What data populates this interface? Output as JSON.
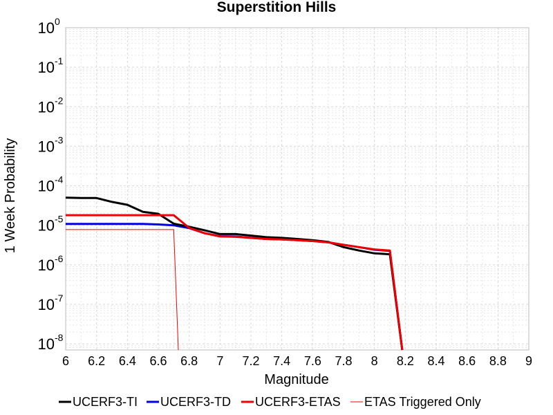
{
  "chart_data": {
    "type": "line",
    "title": "Superstition Hills",
    "xlabel": "Magnitude",
    "ylabel": "1 Week Probability",
    "xlim": [
      6,
      9
    ],
    "ylim": [
      7e-09,
      1
    ],
    "yscale": "log",
    "grid": true,
    "legend_position": "bottom",
    "x_ticks": [
      "6",
      "6.2",
      "6.4",
      "6.6",
      "6.8",
      "7",
      "7.2",
      "7.4",
      "7.6",
      "7.8",
      "8",
      "8.2",
      "8.4",
      "8.6",
      "8.8",
      "9"
    ],
    "y_ticks": [
      {
        "base": "10",
        "exp": "0",
        "value": 1
      },
      {
        "base": "10",
        "exp": "-1",
        "value": 0.1
      },
      {
        "base": "10",
        "exp": "-2",
        "value": 0.01
      },
      {
        "base": "10",
        "exp": "-3",
        "value": 0.001
      },
      {
        "base": "10",
        "exp": "-4",
        "value": 0.0001
      },
      {
        "base": "10",
        "exp": "-5",
        "value": 1e-05
      },
      {
        "base": "10",
        "exp": "-6",
        "value": 1e-06
      },
      {
        "base": "10",
        "exp": "-7",
        "value": 1e-07
      },
      {
        "base": "10",
        "exp": "-8",
        "value": 1e-08
      }
    ],
    "series": [
      {
        "name": "UCERF3-TI",
        "color": "#000000",
        "width": 3,
        "x": [
          6.0,
          6.1,
          6.2,
          6.3,
          6.4,
          6.5,
          6.6,
          6.7,
          6.8,
          6.9,
          7.0,
          7.1,
          7.2,
          7.3,
          7.4,
          7.5,
          7.6,
          7.7,
          7.8,
          7.9,
          8.0,
          8.1,
          8.18
        ],
        "y": [
          5e-05,
          4.9e-05,
          4.9e-05,
          3.9e-05,
          3.3e-05,
          2.2e-05,
          1.95e-05,
          1.1e-05,
          9.2e-06,
          7.5e-06,
          6e-06,
          6e-06,
          5.5e-06,
          5e-06,
          4.8e-06,
          4.5e-06,
          4.2e-06,
          3.8e-06,
          2.8e-06,
          2.3e-06,
          1.95e-06,
          1.85e-06,
          7e-09
        ]
      },
      {
        "name": "UCERF3-TD",
        "color": "#0000dd",
        "width": 3,
        "x": [
          6.0,
          6.5,
          6.6,
          6.7,
          6.8,
          6.9,
          7.0,
          7.1,
          7.2,
          7.3,
          7.4,
          7.5,
          7.6,
          7.7,
          7.8,
          7.9,
          8.0,
          8.1,
          8.18
        ],
        "y": [
          1.08e-05,
          1.08e-05,
          1.05e-05,
          1e-05,
          8.5e-06,
          6.3e-06,
          5.3e-06,
          5.2e-06,
          4.8e-06,
          4.5e-06,
          4.4e-06,
          4.2e-06,
          4e-06,
          3.7e-06,
          3.2e-06,
          2.8e-06,
          2.4e-06,
          2.25e-06,
          7e-09
        ]
      },
      {
        "name": "UCERF3-ETAS",
        "color": "#ee0000",
        "width": 3,
        "x": [
          6.0,
          6.1,
          6.2,
          6.3,
          6.4,
          6.5,
          6.6,
          6.7,
          6.8,
          6.9,
          7.0,
          7.1,
          7.2,
          7.3,
          7.4,
          7.5,
          7.6,
          7.7,
          7.8,
          7.9,
          8.0,
          8.1,
          8.18
        ],
        "y": [
          1.8e-05,
          1.8e-05,
          1.8e-05,
          1.8e-05,
          1.8e-05,
          1.8e-05,
          1.8e-05,
          1.8e-05,
          8.6e-06,
          6.3e-06,
          5.2e-06,
          5.1e-06,
          4.8e-06,
          4.5e-06,
          4.4e-06,
          4.2e-06,
          4e-06,
          3.7e-06,
          3.2e-06,
          2.8e-06,
          2.45e-06,
          2.3e-06,
          7e-09
        ]
      },
      {
        "name": "ETAS Triggered Only",
        "color": "#ee0000",
        "width": 1,
        "x": [
          6.0,
          6.7,
          6.73
        ],
        "y": [
          7.8e-06,
          7.8e-06,
          7e-09
        ]
      }
    ]
  }
}
